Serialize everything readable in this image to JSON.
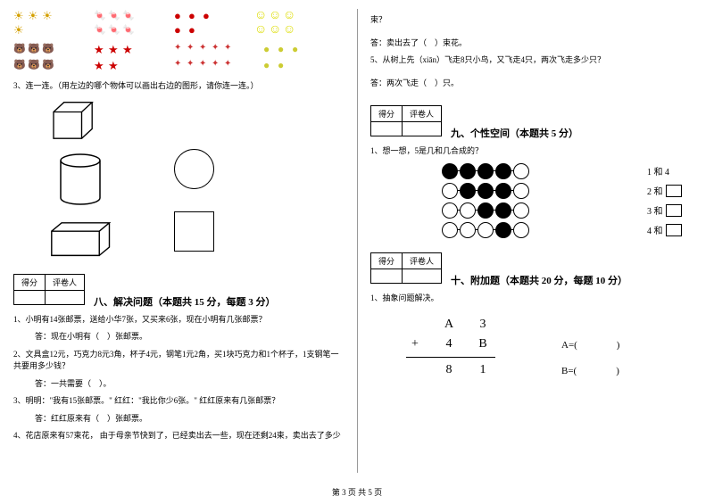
{
  "left": {
    "q3": "3、连一连。（用左边的哪个物体可以画出右边的图形，请你连一连。）",
    "section8_score_h1": "得分",
    "section8_score_h2": "评卷人",
    "section8_title": "八、解决问题（本题共 15 分，每题 3 分）",
    "q8_1": "1、小明有14张邮票，送给小华7张，又买来6张，现在小明有几张邮票？",
    "q8_1a": "答：现在小明有（　）张邮票。",
    "q8_2": "2、文具盒12元，巧克力8元3角，杯子4元，钢笔1元2角，买1块巧克力和1个杯子，1支钢笔一共要用多少钱？",
    "q8_2a": "答：一共需要（　）。",
    "q8_3": "3、明明：\"我有15张邮票。\" 红红：\"我比你少6张。\" 红红原来有几张邮票？",
    "q8_3a": "答：红红原来有（　）张邮票。",
    "q8_4": "4、花店原来有57束花，  由于母亲节快到了，已经卖出去一些，现在还剩24束，卖出去了多少"
  },
  "right": {
    "cont": "束？",
    "ans4": "答：卖出去了（　）束花。",
    "q8_5": "5、从树上先（xiān）飞走8只小鸟，又飞走4只，两次飞走多少只？",
    "ans5": "答：两次飞走（　）只。",
    "section9_score_h1": "得分",
    "section9_score_h2": "评卷人",
    "section9_title": "九、个性空间（本题共 5 分）",
    "q9_1": "1、想一想，5是几和几合成的？",
    "opts": [
      "1 和 4",
      "2 和",
      "3 和",
      "4 和"
    ],
    "section10_score_h1": "得分",
    "section10_score_h2": "评卷人",
    "section10_title": "十、附加题（本题共 20 分，每题 10 分）",
    "q10_1": "1、抽象问题解决。",
    "m_r1_c1": "A",
    "m_r1_c2": "3",
    "m_r2_op": "+",
    "m_r2_c1": "4",
    "m_r2_c2": "B",
    "m_r3_c1": "8",
    "m_r3_c2": "1",
    "eqA": "A=(　　　　)",
    "eqB": "B=(　　　　)"
  },
  "footer": "第 3 页 共 5 页",
  "dots": {
    "rows": [
      {
        "filled": [
          0,
          1,
          2,
          3
        ],
        "empty": [
          4
        ],
        "line_start": 0,
        "line_end": 4
      },
      {
        "filled": [
          1,
          2,
          3
        ],
        "empty": [
          0,
          4
        ],
        "line_start": 0,
        "line_end": 4
      },
      {
        "filled": [
          2,
          3
        ],
        "empty": [
          0,
          1,
          4
        ],
        "line_start": 0,
        "line_end": 4
      },
      {
        "filled": [
          3
        ],
        "empty": [
          0,
          1,
          2,
          4
        ],
        "line_start": 0,
        "line_end": 4
      }
    ]
  },
  "colors": {
    "stroke": "#000000",
    "bg": "#ffffff"
  }
}
